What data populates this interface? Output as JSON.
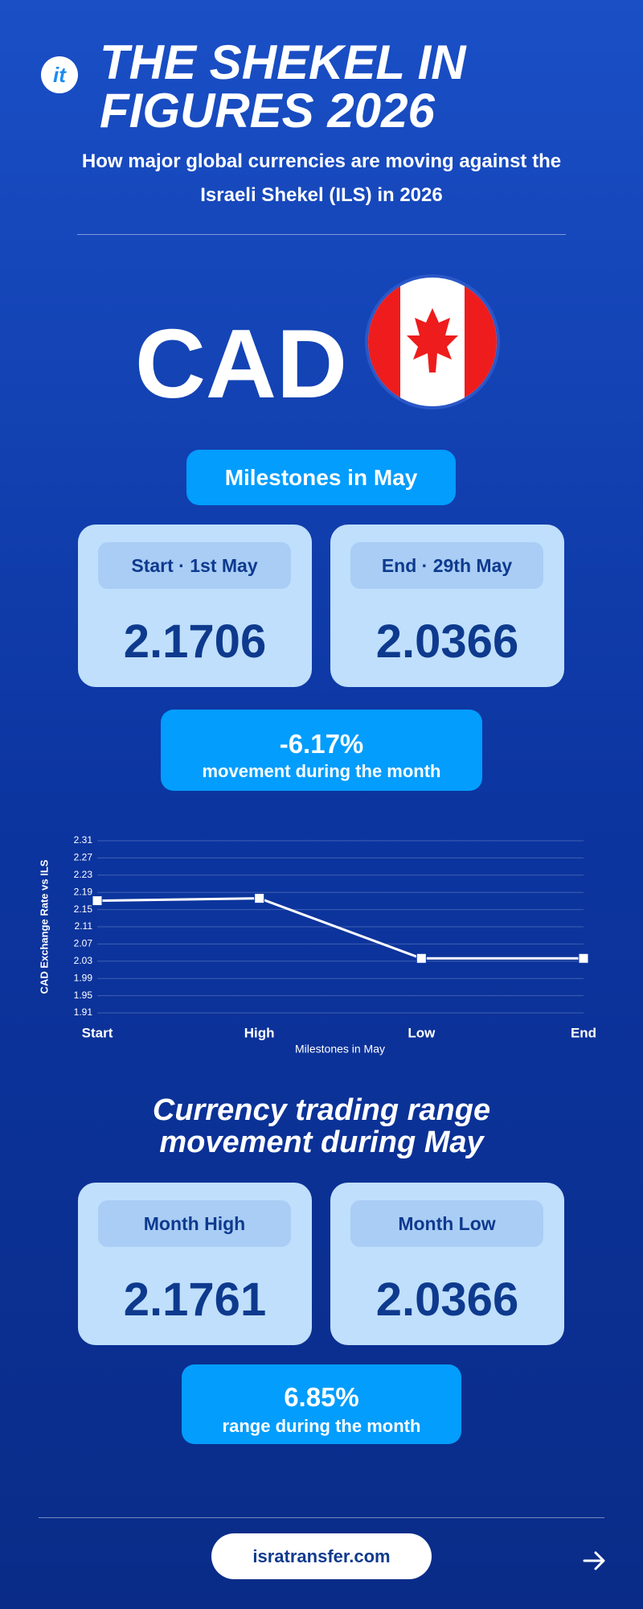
{
  "header": {
    "title": "THE SHEKEL IN FIGURES 2026",
    "subtitle": "How major global currencies are moving against the Israeli Shekel (ILS) in 2026"
  },
  "currency": "CAD",
  "milestones": {
    "heading": "Milestones in May",
    "cards": [
      {
        "label": "Start · 1st May",
        "value": "2.1706"
      },
      {
        "label": "End · 29th May",
        "value": "2.0366"
      }
    ],
    "summary": {
      "value": "-6.17%",
      "label": "movement during the month"
    }
  },
  "chart_data": {
    "type": "line",
    "categories": [
      "Start",
      "High",
      "Low",
      "End"
    ],
    "values": [
      2.1706,
      2.1761,
      2.0366,
      2.0366
    ],
    "color": "#ffffff",
    "x_label": "Milestones in May",
    "y_label": "CAD Exchange Rate vs ILS",
    "ylim": [
      1.91,
      2.31
    ],
    "yticks": [
      1.91,
      1.95,
      1.99,
      2.03,
      2.07,
      2.11,
      2.15,
      2.19,
      2.23,
      2.27,
      2.31
    ],
    "grid": true
  },
  "range": {
    "heading": "Currency trading range movement during May",
    "cards": [
      {
        "label": "Month High",
        "value": "2.1761"
      },
      {
        "label": "Month Low",
        "value": "2.0366"
      }
    ],
    "summary": {
      "value": "6.85%",
      "label": "range during the month"
    }
  },
  "footer": {
    "url": "isratransfer.com"
  }
}
